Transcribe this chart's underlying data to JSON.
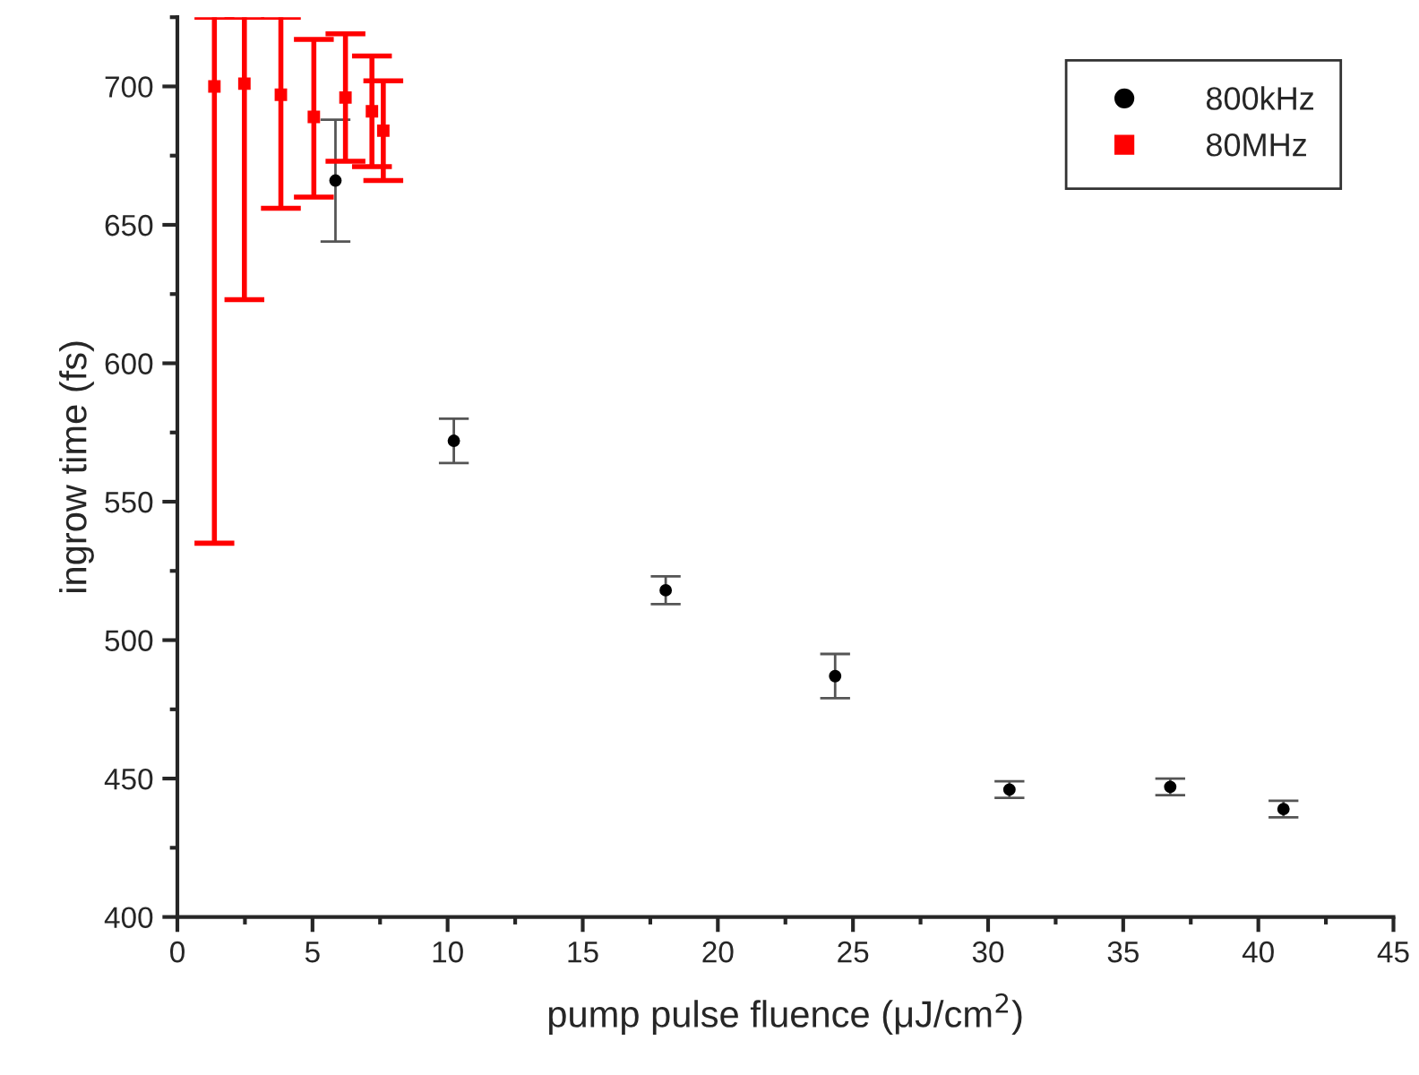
{
  "chart_data": {
    "type": "scatter",
    "xlabel": "pump pulse fluence (μJ/cm$^{2}$)",
    "ylabel": "ingrow time (fs)",
    "xlim": [
      0,
      45
    ],
    "xticks": [
      0,
      5,
      10,
      15,
      20,
      25,
      30,
      35,
      40,
      45
    ],
    "ylim": [
      400,
      725
    ],
    "yticks": [
      400,
      450,
      500,
      550,
      600,
      650,
      700
    ],
    "legend": "top right",
    "grid": false,
    "series": [
      {
        "name": "800kHz",
        "color": "#000000",
        "marker": "circle",
        "x": [
          5.85,
          10.23,
          18.07,
          24.34,
          30.79,
          36.74,
          40.93
        ],
        "values": [
          666,
          572,
          518,
          487,
          446,
          447,
          439
        ],
        "errors": [
          22,
          8,
          5,
          8,
          3,
          3,
          3
        ]
      },
      {
        "name": "80MHz",
        "color": "#ff0000",
        "marker": "square",
        "x": [
          1.37,
          2.48,
          3.83,
          5.05,
          6.22,
          7.2,
          7.62
        ],
        "values": [
          700,
          701,
          697,
          689,
          696,
          691,
          684
        ],
        "errors": [
          [
            535,
            725
          ],
          [
            623,
            725
          ],
          [
            656,
            725
          ],
          [
            660,
            717
          ],
          23,
          20,
          18
        ]
      }
    ]
  }
}
